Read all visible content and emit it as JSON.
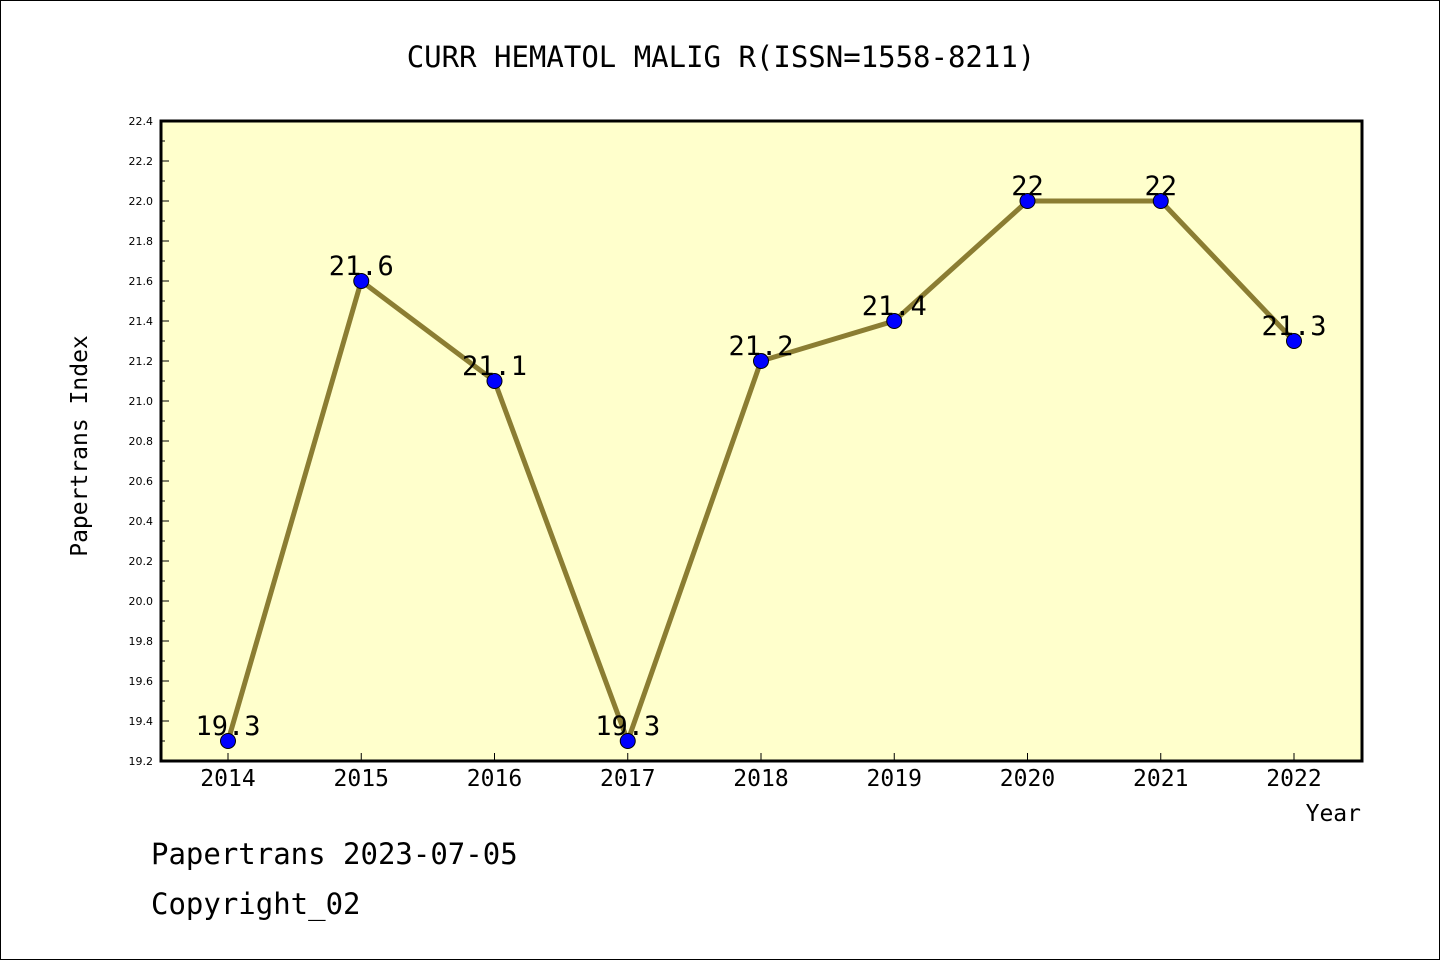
{
  "chart_data": {
    "type": "line",
    "title": "CURR HEMATOL MALIG R(ISSN=1558-8211)",
    "xlabel": "Year",
    "ylabel": "Papertrans Index",
    "categories": [
      "2014",
      "2015",
      "2016",
      "2017",
      "2018",
      "2019",
      "2020",
      "2021",
      "2022"
    ],
    "series": [
      {
        "values": [
          19.3,
          21.6,
          21.1,
          19.3,
          21.2,
          21.4,
          22,
          22,
          21.3
        ],
        "labels": [
          "19.3",
          "21.6",
          "21.1",
          "19.3",
          "21.2",
          "21.4",
          "22",
          "22",
          "21.3"
        ]
      }
    ],
    "ylim": [
      19.2,
      22.4
    ],
    "yticks": [
      "19.2",
      "19.4",
      "19.6",
      "19.8",
      "20.0",
      "20.2",
      "20.4",
      "20.6",
      "20.8",
      "21.0",
      "21.2",
      "21.4",
      "21.6",
      "21.8",
      "22.0",
      "22.2",
      "22.4"
    ],
    "grid": false,
    "colors": {
      "plot_background": "#ffffcc",
      "line": "#8b7d32",
      "marker": "#0000ff"
    }
  },
  "footer": {
    "line1": "Papertrans 2023-07-05",
    "line2": "Copyright_02"
  }
}
